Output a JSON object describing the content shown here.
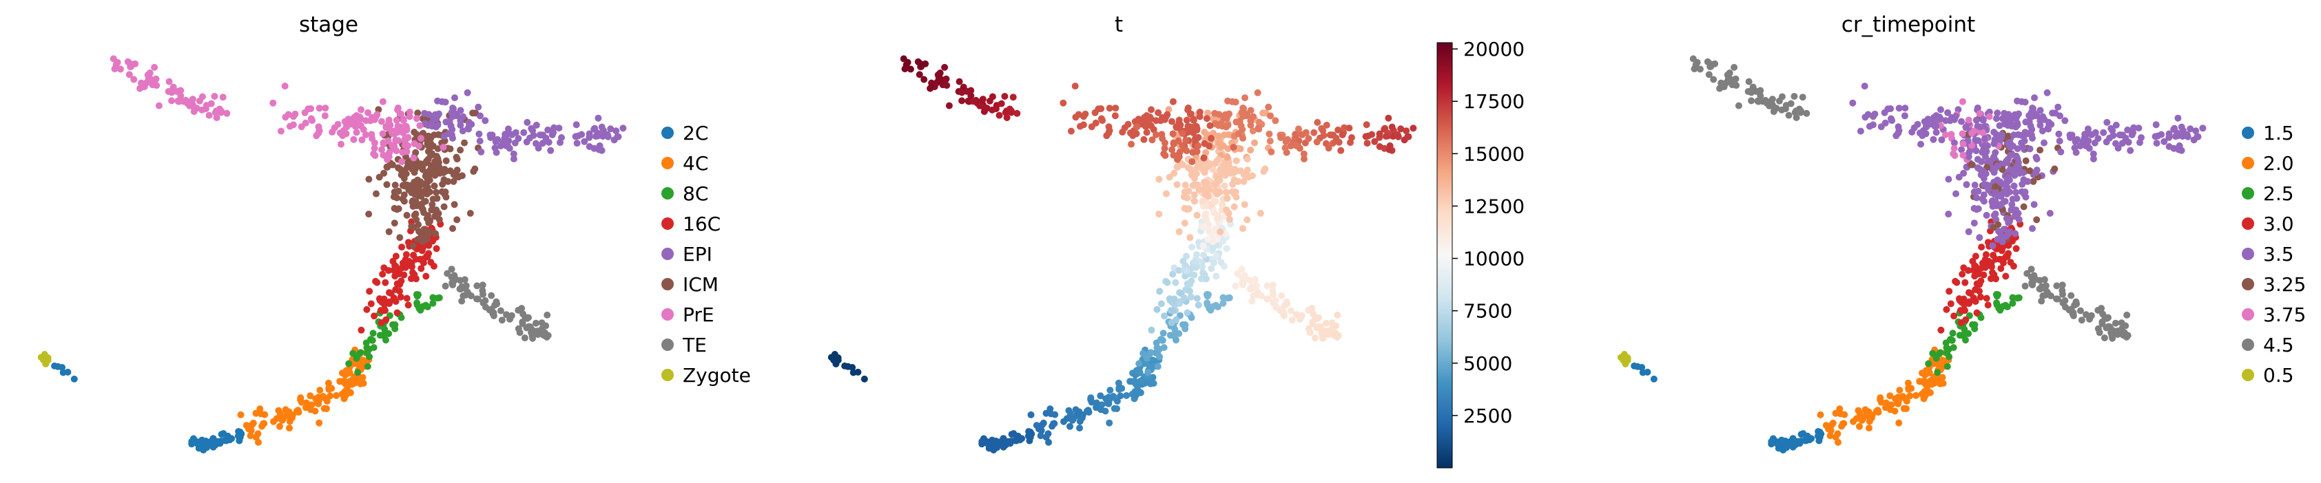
{
  "chart_data": [
    {
      "type": "scatter",
      "title": "stage",
      "xlabel": "",
      "ylabel": "",
      "legend_position": "right",
      "colors": {
        "2C": "#1f77b4",
        "4C": "#ff7f0e",
        "8C": "#2ca02c",
        "16C": "#d62728",
        "EPI": "#9467bd",
        "ICM": "#8c564b",
        "PrE": "#e377c2",
        "TE": "#7f7f7f",
        "Zygote": "#bcbd22"
      },
      "legend": [
        "2C",
        "4C",
        "8C",
        "16C",
        "EPI",
        "ICM",
        "PrE",
        "TE",
        "Zygote"
      ]
    },
    {
      "type": "scatter",
      "title": "t",
      "xlabel": "",
      "ylabel": "",
      "colormap": "RdBu_r",
      "colorbar": {
        "range": [
          0,
          20300
        ],
        "ticks": [
          "2500",
          "5000",
          "7500",
          "10000",
          "12500",
          "15000",
          "17500",
          "20000"
        ]
      }
    },
    {
      "type": "scatter",
      "title": "cr_timepoint",
      "xlabel": "",
      "ylabel": "",
      "legend_position": "right",
      "colors": {
        "1.5": "#1f77b4",
        "2.0": "#ff7f0e",
        "2.5": "#2ca02c",
        "3.0": "#d62728",
        "3.5": "#9467bd",
        "3.25": "#8c564b",
        "3.75": "#e377c2",
        "4.5": "#7f7f7f",
        "0.5": "#bcbd22"
      },
      "legend": [
        "1.5",
        "2.0",
        "2.5",
        "3.0",
        "3.5",
        "3.25",
        "3.75",
        "4.5",
        "0.5"
      ]
    }
  ]
}
